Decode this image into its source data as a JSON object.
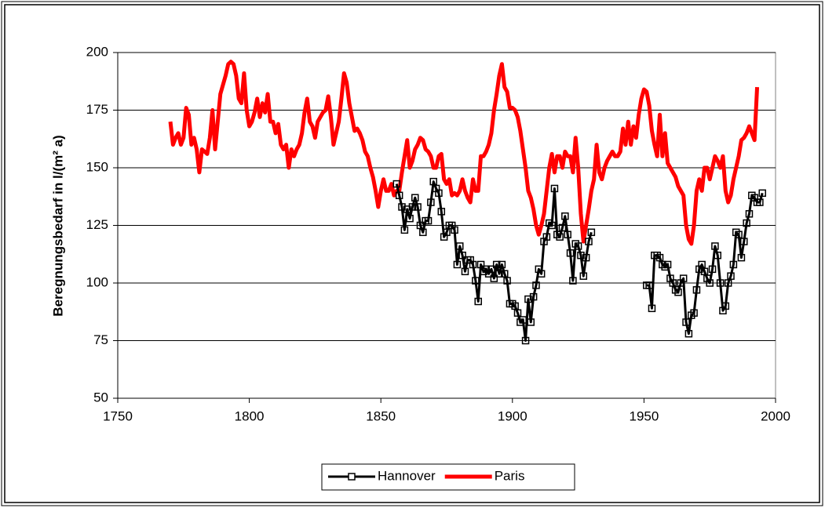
{
  "chart_data": {
    "type": "line",
    "y_label": "Beregnungsbedarf in l/(m² a)",
    "xlim": [
      1750,
      2000
    ],
    "xticks": [
      1750,
      1800,
      1850,
      1900,
      1950,
      2000
    ],
    "ylim": [
      50,
      200
    ],
    "yticks": [
      50,
      75,
      100,
      125,
      150,
      175,
      200
    ],
    "grid": true,
    "legend": "bottom",
    "series": [
      {
        "name": "Hannover",
        "color": "#000000",
        "marker": "square",
        "x": [
          1856,
          1857,
          1858,
          1859,
          1860,
          1861,
          1862,
          1863,
          1864,
          1865,
          1866,
          1867,
          1868,
          1869,
          1870,
          1871,
          1872,
          1873,
          1874,
          1875,
          1876,
          1877,
          1878,
          1879,
          1880,
          1881,
          1882,
          1883,
          1884,
          1885,
          1886,
          1887,
          1888,
          1889,
          1890,
          1891,
          1892,
          1893,
          1894,
          1895,
          1896,
          1897,
          1898,
          1899,
          1900,
          1901,
          1902,
          1903,
          1904,
          1905,
          1906,
          1907,
          1908,
          1909,
          1910,
          1911,
          1912,
          1913,
          1914,
          1915,
          1916,
          1917,
          1918,
          1919,
          1920,
          1921,
          1922,
          1923,
          1924,
          1925,
          1926,
          1927,
          1928,
          1929,
          1930,
          1940,
          1951,
          1952,
          1953,
          1954,
          1955,
          1956,
          1957,
          1958,
          1959,
          1960,
          1961,
          1962,
          1963,
          1964,
          1965,
          1966,
          1967,
          1968,
          1969,
          1970,
          1971,
          1972,
          1973,
          1974,
          1975,
          1976,
          1977,
          1978,
          1979,
          1980,
          1981,
          1982,
          1983,
          1984,
          1985,
          1986,
          1987,
          1988,
          1989,
          1990,
          1991,
          1992,
          1993,
          1994,
          1995
        ],
        "values": [
          143,
          138,
          133,
          123,
          132,
          128,
          133,
          137,
          133,
          125,
          122,
          127,
          127,
          135,
          144,
          141,
          139,
          131,
          120,
          122,
          125,
          125,
          123,
          108,
          116,
          112,
          105,
          110,
          110,
          108,
          101,
          92,
          108,
          105,
          106,
          104,
          106,
          102,
          108,
          104,
          108,
          104,
          101,
          91,
          91,
          90,
          87,
          83,
          84,
          75,
          93,
          83,
          94,
          99,
          106,
          104,
          118,
          120,
          126,
          125,
          141,
          121,
          120,
          124,
          129,
          121,
          113,
          101,
          117,
          116,
          112,
          103,
          111,
          118,
          122,
          null,
          99,
          99,
          89,
          112,
          112,
          111,
          108,
          107,
          108,
          102,
          100,
          97,
          96,
          100,
          102,
          83,
          78,
          86,
          87,
          97,
          106,
          108,
          105,
          102,
          100,
          106,
          116,
          112,
          100,
          88,
          90,
          100,
          103,
          108,
          122,
          121,
          111,
          118,
          126,
          130,
          138,
          137,
          135,
          135,
          139
        ]
      },
      {
        "name": "Paris",
        "color": "#ff0000",
        "x": [
          1770,
          1771,
          1772,
          1773,
          1774,
          1775,
          1776,
          1777,
          1778,
          1779,
          1780,
          1781,
          1782,
          1783,
          1784,
          1785,
          1786,
          1787,
          1788,
          1789,
          1790,
          1791,
          1792,
          1793,
          1794,
          1795,
          1796,
          1797,
          1798,
          1799,
          1800,
          1801,
          1802,
          1803,
          1804,
          1805,
          1806,
          1807,
          1808,
          1809,
          1810,
          1811,
          1812,
          1813,
          1814,
          1815,
          1816,
          1817,
          1818,
          1819,
          1820,
          1821,
          1822,
          1823,
          1824,
          1825,
          1826,
          1827,
          1828,
          1829,
          1830,
          1831,
          1832,
          1833,
          1834,
          1835,
          1836,
          1837,
          1838,
          1839,
          1840,
          1841,
          1842,
          1843,
          1844,
          1845,
          1846,
          1847,
          1848,
          1849,
          1850,
          1851,
          1852,
          1853,
          1854,
          1855,
          1856,
          1857,
          1858,
          1859,
          1860,
          1861,
          1862,
          1863,
          1864,
          1865,
          1866,
          1867,
          1868,
          1869,
          1870,
          1871,
          1872,
          1873,
          1874,
          1875,
          1876,
          1877,
          1878,
          1879,
          1880,
          1881,
          1882,
          1883,
          1884,
          1885,
          1886,
          1887,
          1888,
          1889,
          1890,
          1891,
          1892,
          1893,
          1894,
          1895,
          1896,
          1897,
          1898,
          1899,
          1900,
          1901,
          1902,
          1903,
          1904,
          1905,
          1906,
          1907,
          1908,
          1909,
          1910,
          1911,
          1912,
          1913,
          1914,
          1915,
          1916,
          1917,
          1918,
          1919,
          1920,
          1921,
          1922,
          1923,
          1924,
          1925,
          1926,
          1927,
          1928,
          1929,
          1930,
          1931,
          1932,
          1933,
          1934,
          1935,
          1936,
          1937,
          1938,
          1939,
          1940,
          1941,
          1942,
          1943,
          1944,
          1945,
          1946,
          1947,
          1948,
          1949,
          1950,
          1951,
          1952,
          1953,
          1954,
          1955,
          1956,
          1957,
          1958,
          1959,
          1960,
          1961,
          1962,
          1963,
          1964,
          1965,
          1966,
          1967,
          1968,
          1969,
          1970,
          1971,
          1972,
          1973,
          1974,
          1975,
          1976,
          1977,
          1978,
          1979,
          1980,
          1981,
          1982,
          1983,
          1984,
          1985,
          1986,
          1987,
          1988,
          1989,
          1990,
          1991,
          1992,
          1993
        ],
        "values": [
          170,
          160,
          163,
          165,
          160,
          163,
          176,
          173,
          160,
          163,
          158,
          148,
          158,
          157,
          156,
          163,
          175,
          158,
          170,
          182,
          186,
          190,
          195,
          196,
          195,
          190,
          180,
          178,
          191,
          175,
          168,
          170,
          174,
          180,
          172,
          178,
          174,
          182,
          170,
          170,
          165,
          169,
          160,
          158,
          160,
          150,
          158,
          155,
          158,
          160,
          165,
          174,
          180,
          170,
          168,
          163,
          170,
          172,
          174,
          175,
          181,
          172,
          160,
          165,
          170,
          180,
          191,
          187,
          178,
          172,
          166,
          167,
          165,
          162,
          157,
          155,
          150,
          146,
          140,
          133,
          140,
          145,
          140,
          140,
          143,
          138,
          140,
          140,
          148,
          155,
          162,
          150,
          153,
          158,
          160,
          163,
          162,
          158,
          157,
          155,
          150,
          150,
          155,
          156,
          145,
          143,
          145,
          138,
          139,
          138,
          140,
          145,
          140,
          137,
          135,
          145,
          140,
          140,
          155,
          155,
          157,
          160,
          165,
          175,
          182,
          190,
          195,
          185,
          183,
          176,
          176,
          175,
          172,
          166,
          158,
          150,
          140,
          137,
          132,
          125,
          121,
          125,
          130,
          140,
          150,
          156,
          148,
          155,
          155,
          150,
          157,
          155,
          155,
          148,
          163,
          150,
          130,
          118,
          125,
          132,
          140,
          145,
          160,
          148,
          145,
          150,
          153,
          155,
          157,
          155,
          155,
          157,
          167,
          160,
          170,
          160,
          168,
          163,
          173,
          180,
          184,
          183,
          177,
          166,
          160,
          155,
          173,
          155,
          165,
          152,
          150,
          148,
          146,
          142,
          140,
          138,
          125,
          119,
          117,
          125,
          140,
          145,
          140,
          150,
          150,
          145,
          150,
          155,
          153,
          150,
          155,
          140,
          135,
          138,
          145,
          150,
          155,
          162,
          163,
          165,
          168,
          165,
          162,
          185
        ]
      }
    ]
  }
}
